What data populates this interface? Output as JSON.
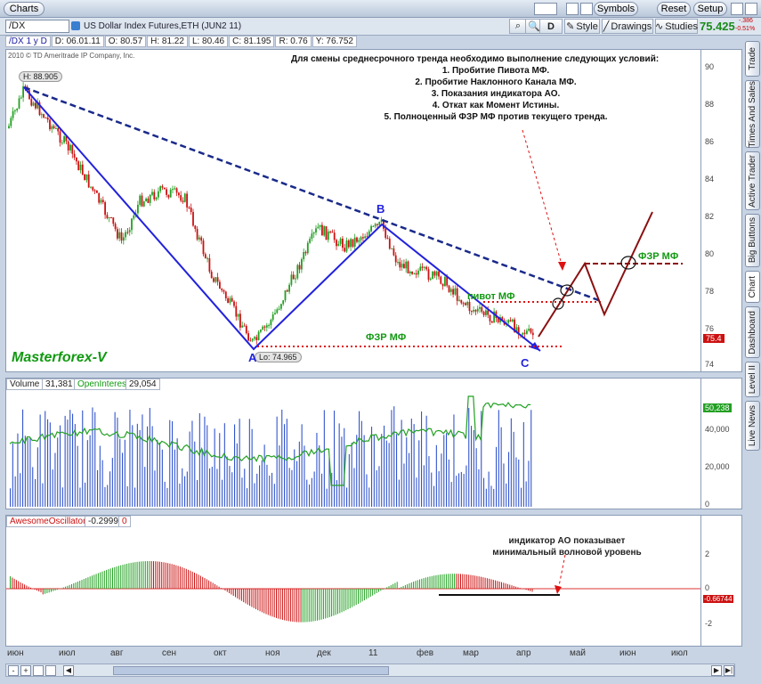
{
  "app": {
    "tab_label": "Charts",
    "buttons": {
      "symbols": "Symbols",
      "reset": "Reset",
      "setup": "Setup"
    }
  },
  "toolbar": {
    "symbol_value": "/DX",
    "instrument_name": "US Dollar Index Futures,ETH (JUN2 11)",
    "period_label": "D",
    "style_label": "Style",
    "drawings_label": "Drawings",
    "studies_label": "Studies",
    "last_price": "75.425",
    "change_abs": "-.386",
    "change_pct": "-0.51%"
  },
  "infobar": {
    "symbol_period": "/DX 1 y D",
    "date": "D: 06.01.11",
    "open": "O: 80.57",
    "high": "H: 81.22",
    "low": "L: 80.46",
    "close": "C: 81.195",
    "range": "R: 0.76",
    "y": "Y: 76.752"
  },
  "price_pane": {
    "copyright": "2010 © TD Ameritrade IP Company, Inc.",
    "high_label": "H: 88.905",
    "low_label": "Lo: 74.965",
    "watermark": "Masterforex-V",
    "current_price_tag": "75.4",
    "annotation_lines": [
      "Для смены среднесрочного тренда необходимо выполнение следующих условий:",
      "1. Пробитие Пивота МФ.",
      "2. Пробитие Наклонного Канала МФ.",
      "3. Показания индикатора АО.",
      "4. Откат как Момент Истины.",
      "5. Полноценный ФЗР МФ против текущего тренда."
    ],
    "label_a": "A",
    "label_b": "B",
    "label_c": "C",
    "fzr_left": "ФЗР МФ",
    "pivot": "пивот МФ",
    "fzr_right": "ФЗР МФ",
    "y_ticks": [
      "90",
      "88",
      "86",
      "84",
      "82",
      "80",
      "78",
      "76",
      "74"
    ]
  },
  "volume_pane": {
    "label": "Volume",
    "volume_value": "31,381",
    "oi_label": "OpenInterest",
    "oi_value": "29,054",
    "oi_tag": "50,238",
    "y_ticks": [
      "40,000",
      "20,000",
      "0"
    ]
  },
  "ao_pane": {
    "label": "AwesomeOscillator",
    "value": "-0.2999",
    "zero_value": "0",
    "tag": "-0.66744",
    "annotation_lines": [
      "индикатор АО показывает",
      "минимальный волновой уровень"
    ],
    "y_ticks": [
      "2",
      "0",
      "-2"
    ]
  },
  "months": [
    "июн",
    "июл",
    "авг",
    "сен",
    "окт",
    "ноя",
    "дек",
    "11",
    "фев",
    "мар",
    "апр",
    "май",
    "июн",
    "июл"
  ],
  "right_tabs": [
    "Trade",
    "Times And Sales",
    "Active Trader",
    "Big Buttons",
    "Chart",
    "Dashboard",
    "Level II",
    "Live News"
  ],
  "colors": {
    "up": "#22a022",
    "down": "#cc1111",
    "trend": "#2222dd",
    "dashed": "#1a2a8a",
    "forecast": "#8b1010",
    "green_text": "#119911"
  }
}
